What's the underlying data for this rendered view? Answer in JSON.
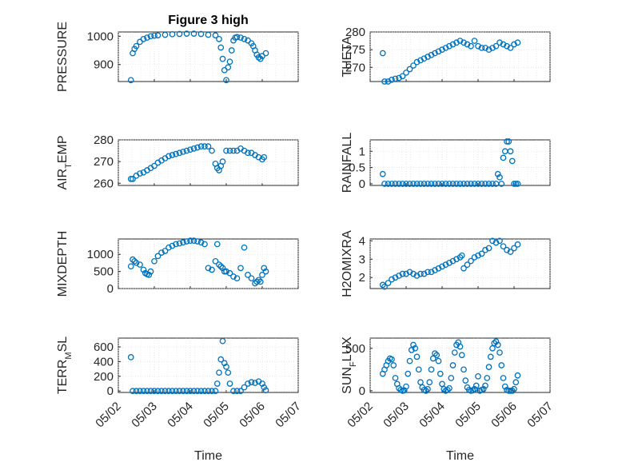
{
  "figure_title": "Figure 3 high",
  "x_axis_label": "Time",
  "marker_color": "#0072BD",
  "chart_data": [
    {
      "type": "scatter",
      "ylabel": "PRESSURE",
      "title": "Figure 3 high",
      "xlim": [
        0,
        5
      ],
      "ylim": [
        840,
        1015
      ],
      "yticks": [
        900,
        1000
      ],
      "xticklabels": [
        "05/02",
        "05/03",
        "05/04",
        "05/05",
        "05/06",
        "05/07"
      ],
      "grid": true,
      "x": [
        0.35,
        0.4,
        0.45,
        0.5,
        0.6,
        0.7,
        0.8,
        0.9,
        1.0,
        1.1,
        1.3,
        1.5,
        1.7,
        1.9,
        2.1,
        2.3,
        2.5,
        2.7,
        2.8,
        2.85,
        2.9,
        2.95,
        3.0,
        3.05,
        3.1,
        3.15,
        3.2,
        3.25,
        3.3,
        3.4,
        3.5,
        3.6,
        3.7,
        3.75,
        3.8,
        3.85,
        3.9,
        3.95,
        4.0,
        4.1
      ],
      "y": [
        845,
        940,
        955,
        965,
        980,
        990,
        995,
        1000,
        1002,
        1003,
        1005,
        1007,
        1008,
        1009,
        1009,
        1008,
        1005,
        1003,
        990,
        960,
        920,
        880,
        845,
        890,
        910,
        950,
        985,
        995,
        997,
        995,
        990,
        985,
        975,
        965,
        950,
        935,
        925,
        920,
        930,
        940
      ]
    },
    {
      "type": "scatter",
      "ylabel": "THETA",
      "xlim": [
        0,
        5
      ],
      "ylim": [
        266,
        280
      ],
      "yticks": [
        270,
        275,
        280
      ],
      "xticklabels": [
        "05/02",
        "05/03",
        "05/04",
        "05/05",
        "05/06",
        "05/07"
      ],
      "grid": true,
      "x": [
        0.35,
        0.4,
        0.5,
        0.6,
        0.7,
        0.8,
        0.9,
        1.0,
        1.1,
        1.2,
        1.3,
        1.4,
        1.5,
        1.6,
        1.7,
        1.8,
        1.9,
        2.0,
        2.1,
        2.2,
        2.3,
        2.4,
        2.5,
        2.6,
        2.7,
        2.8,
        2.9,
        3.0,
        3.1,
        3.2,
        3.3,
        3.4,
        3.5,
        3.6,
        3.7,
        3.8,
        3.9,
        4.0,
        4.1
      ],
      "y": [
        274,
        266,
        266,
        266.5,
        266.8,
        267,
        267.5,
        268.5,
        269.5,
        270.5,
        271.5,
        272,
        272.5,
        273,
        273.5,
        274,
        274.5,
        275,
        275.5,
        276,
        276.5,
        277,
        277.5,
        277,
        276.5,
        276,
        277.5,
        276,
        275.5,
        275.5,
        275,
        275.5,
        276,
        277,
        276.5,
        276,
        275.5,
        276.5,
        277
      ]
    },
    {
      "type": "scatter",
      "ylabel": "AIR_TEMP",
      "ylabel_main": "AIR",
      "ylabel_sub": "T",
      "ylabel_rest": "EMP",
      "xlim": [
        0,
        5
      ],
      "ylim": [
        259,
        280
      ],
      "yticks": [
        260,
        270,
        280
      ],
      "xticklabels": [
        "05/02",
        "05/03",
        "05/04",
        "05/05",
        "05/06",
        "05/07"
      ],
      "grid": true,
      "x": [
        0.35,
        0.4,
        0.5,
        0.6,
        0.7,
        0.8,
        0.9,
        1.0,
        1.1,
        1.2,
        1.3,
        1.4,
        1.5,
        1.6,
        1.7,
        1.8,
        1.9,
        2.0,
        2.1,
        2.2,
        2.3,
        2.4,
        2.5,
        2.6,
        2.7,
        2.75,
        2.8,
        2.85,
        2.9,
        3.0,
        3.1,
        3.2,
        3.3,
        3.4,
        3.5,
        3.6,
        3.7,
        3.8,
        3.9,
        4.0,
        4.05
      ],
      "y": [
        262,
        262,
        263.5,
        264.5,
        265,
        266,
        267,
        268,
        269.5,
        270.5,
        271.5,
        272.5,
        273,
        273.5,
        274,
        274.5,
        275,
        275.5,
        276,
        276.5,
        277,
        277,
        277,
        275,
        269,
        267,
        266,
        268,
        270,
        275,
        275,
        275,
        275,
        276,
        275,
        274,
        274,
        273,
        272,
        271,
        272
      ]
    },
    {
      "type": "scatter",
      "ylabel": "RAINFALL",
      "xlim": [
        0,
        5
      ],
      "ylim": [
        -0.05,
        1.35
      ],
      "yticks": [
        0,
        0.5,
        1
      ],
      "xticklabels": [
        "05/02",
        "05/03",
        "05/04",
        "05/05",
        "05/06",
        "05/07"
      ],
      "grid": true,
      "x": [
        0.35,
        0.4,
        0.5,
        0.6,
        0.7,
        0.8,
        0.9,
        1.0,
        1.1,
        1.2,
        1.3,
        1.4,
        1.5,
        1.6,
        1.7,
        1.8,
        1.9,
        2.0,
        2.1,
        2.2,
        2.3,
        2.4,
        2.5,
        2.6,
        2.7,
        2.8,
        2.9,
        3.0,
        3.1,
        3.2,
        3.3,
        3.4,
        3.5,
        3.55,
        3.6,
        3.65,
        3.7,
        3.75,
        3.8,
        3.85,
        3.9,
        3.95,
        4.0,
        4.05,
        4.1
      ],
      "y": [
        0.3,
        0,
        0,
        0,
        0,
        0,
        0,
        0,
        0,
        0,
        0,
        0,
        0,
        0,
        0,
        0,
        0,
        0,
        0,
        0,
        0,
        0,
        0,
        0,
        0,
        0,
        0,
        0,
        0,
        0,
        0,
        0,
        0,
        0.3,
        0.2,
        0,
        0.8,
        1.0,
        1.3,
        1.3,
        1.0,
        0.7,
        0,
        0,
        0
      ]
    },
    {
      "type": "scatter",
      "ylabel": "MIXDEPTH",
      "xlim": [
        0,
        5
      ],
      "ylim": [
        0,
        1450
      ],
      "yticks": [
        0,
        500,
        1000
      ],
      "xticklabels": [
        "05/02",
        "05/03",
        "05/04",
        "05/05",
        "05/06",
        "05/07"
      ],
      "grid": true,
      "x": [
        0.35,
        0.4,
        0.45,
        0.5,
        0.6,
        0.7,
        0.75,
        0.8,
        0.85,
        0.9,
        1.0,
        1.1,
        1.2,
        1.3,
        1.4,
        1.5,
        1.6,
        1.7,
        1.8,
        1.9,
        2.0,
        2.1,
        2.2,
        2.3,
        2.4,
        2.5,
        2.6,
        2.7,
        2.75,
        2.8,
        2.85,
        2.9,
        2.95,
        3.0,
        3.1,
        3.2,
        3.3,
        3.4,
        3.5,
        3.6,
        3.7,
        3.8,
        3.85,
        3.9,
        3.95,
        4.0,
        4.05,
        4.1
      ],
      "y": [
        650,
        850,
        800,
        750,
        700,
        550,
        450,
        420,
        400,
        500,
        800,
        950,
        1050,
        1100,
        1200,
        1250,
        1300,
        1320,
        1350,
        1380,
        1400,
        1400,
        1380,
        1350,
        1300,
        600,
        550,
        800,
        1300,
        700,
        650,
        600,
        500,
        500,
        450,
        350,
        300,
        600,
        1200,
        400,
        300,
        150,
        200,
        250,
        200,
        400,
        600,
        500
      ]
    },
    {
      "type": "scatter",
      "ylabel": "H2OMIXRA",
      "xlim": [
        0,
        5
      ],
      "ylim": [
        1.4,
        4.1
      ],
      "yticks": [
        2,
        3,
        4
      ],
      "xticklabels": [
        "05/02",
        "05/03",
        "05/04",
        "05/05",
        "05/06",
        "05/07"
      ],
      "grid": true,
      "x": [
        0.35,
        0.4,
        0.5,
        0.6,
        0.7,
        0.8,
        0.9,
        1.0,
        1.1,
        1.2,
        1.3,
        1.4,
        1.5,
        1.6,
        1.7,
        1.8,
        1.9,
        2.0,
        2.1,
        2.2,
        2.3,
        2.4,
        2.5,
        2.55,
        2.6,
        2.7,
        2.8,
        2.9,
        3.0,
        3.1,
        3.2,
        3.3,
        3.4,
        3.5,
        3.6,
        3.7,
        3.8,
        3.9,
        4.0,
        4.1
      ],
      "y": [
        1.6,
        1.5,
        1.7,
        1.9,
        2.0,
        2.1,
        2.2,
        2.2,
        2.3,
        2.2,
        2.1,
        2.2,
        2.2,
        2.3,
        2.3,
        2.4,
        2.5,
        2.6,
        2.7,
        2.8,
        2.9,
        3.0,
        3.1,
        3.2,
        2.5,
        2.7,
        2.9,
        3.1,
        3.2,
        3.3,
        3.5,
        3.6,
        4.0,
        3.9,
        4.0,
        3.7,
        3.5,
        3.4,
        3.6,
        3.8
      ]
    },
    {
      "type": "scatter",
      "ylabel": "TERR_MSL",
      "ylabel_main": "TERR",
      "ylabel_sub": "M",
      "ylabel_rest": "SL",
      "xlim": [
        0,
        5
      ],
      "ylim": [
        -20,
        720
      ],
      "yticks": [
        0,
        200,
        400,
        600
      ],
      "xticklabels": [
        "05/02",
        "05/03",
        "05/04",
        "05/05",
        "05/06",
        "05/07"
      ],
      "grid": true,
      "x": [
        0.35,
        0.4,
        0.5,
        0.6,
        0.7,
        0.8,
        0.9,
        1.0,
        1.1,
        1.2,
        1.3,
        1.4,
        1.5,
        1.6,
        1.7,
        1.8,
        1.9,
        2.0,
        2.1,
        2.2,
        2.3,
        2.4,
        2.5,
        2.6,
        2.7,
        2.75,
        2.8,
        2.85,
        2.9,
        2.95,
        3.0,
        3.05,
        3.1,
        3.2,
        3.3,
        3.4,
        3.5,
        3.6,
        3.7,
        3.8,
        3.9,
        4.0,
        4.05,
        4.1
      ],
      "y": [
        460,
        0,
        0,
        0,
        0,
        0,
        0,
        0,
        0,
        0,
        0,
        0,
        0,
        0,
        0,
        0,
        0,
        0,
        0,
        0,
        0,
        0,
        0,
        0,
        0,
        100,
        250,
        430,
        680,
        380,
        330,
        250,
        100,
        0,
        0,
        0,
        50,
        100,
        120,
        110,
        130,
        100,
        50,
        10
      ]
    },
    {
      "type": "scatter",
      "ylabel": "SUN_FLUX",
      "ylabel_main": "SUN",
      "ylabel_sub": "F",
      "ylabel_rest": "LUX",
      "xlim": [
        0,
        5
      ],
      "ylim": [
        -20,
        620
      ],
      "yticks": [
        0,
        500
      ],
      "xticklabels": [
        "05/02",
        "05/03",
        "05/04",
        "05/05",
        "05/06",
        "05/07"
      ],
      "grid": true,
      "x": [
        0.35,
        0.4,
        0.45,
        0.5,
        0.55,
        0.6,
        0.65,
        0.7,
        0.75,
        0.8,
        0.85,
        0.9,
        0.95,
        1.0,
        1.05,
        1.1,
        1.15,
        1.2,
        1.25,
        1.3,
        1.35,
        1.4,
        1.45,
        1.5,
        1.55,
        1.6,
        1.65,
        1.7,
        1.75,
        1.8,
        1.85,
        1.9,
        1.95,
        2.0,
        2.05,
        2.1,
        2.15,
        2.2,
        2.25,
        2.3,
        2.35,
        2.4,
        2.45,
        2.5,
        2.55,
        2.6,
        2.65,
        2.7,
        2.75,
        2.8,
        2.85,
        2.9,
        2.95,
        3.0,
        3.05,
        3.1,
        3.15,
        3.2,
        3.25,
        3.3,
        3.35,
        3.4,
        3.45,
        3.5,
        3.55,
        3.6,
        3.65,
        3.7,
        3.75,
        3.8,
        3.85,
        3.9,
        3.95,
        4.0,
        4.05,
        4.1
      ],
      "y": [
        200,
        250,
        300,
        350,
        380,
        370,
        300,
        150,
        80,
        30,
        10,
        0,
        5,
        50,
        200,
        350,
        480,
        540,
        500,
        400,
        250,
        100,
        40,
        10,
        0,
        20,
        100,
        250,
        380,
        440,
        420,
        350,
        200,
        80,
        20,
        0,
        10,
        30,
        150,
        300,
        450,
        540,
        570,
        520,
        420,
        250,
        120,
        40,
        10,
        0,
        5,
        20,
        60,
        170,
        0,
        10,
        20,
        60,
        150,
        280,
        400,
        500,
        560,
        580,
        540,
        450,
        300,
        150,
        50,
        10,
        0,
        0,
        0,
        20,
        100,
        180
      ]
    }
  ]
}
